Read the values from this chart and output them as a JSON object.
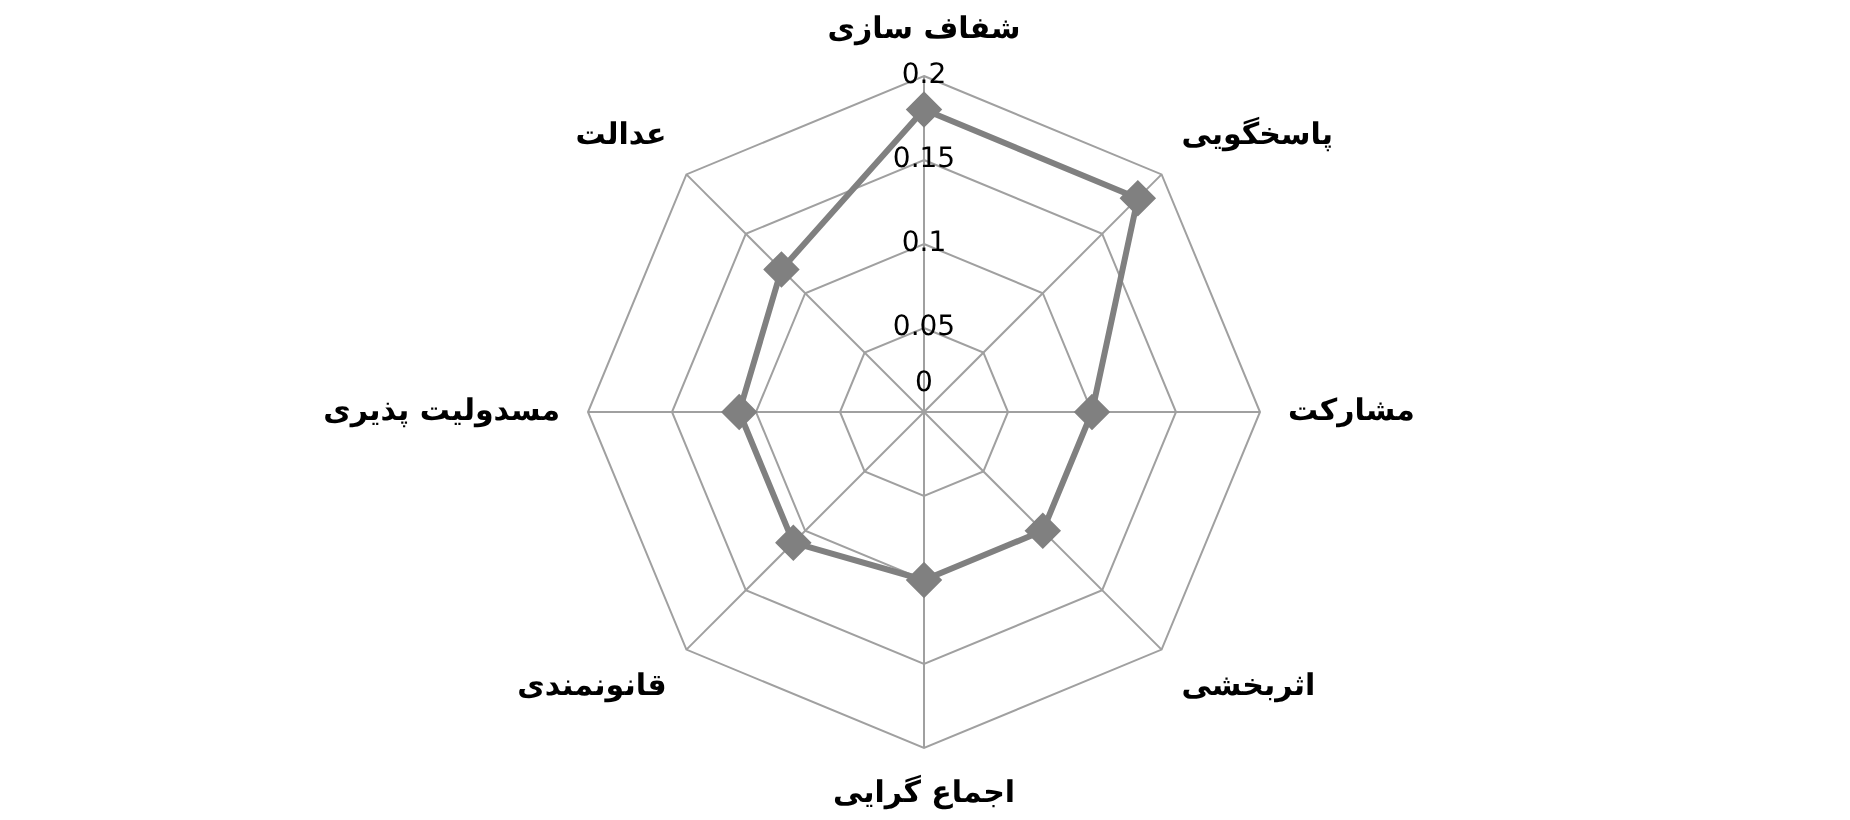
{
  "chart_data": {
    "type": "radar",
    "categories": [
      "شفاف سازی",
      "پاسخگویی",
      "مشارکت",
      "اثربخشی",
      "اجماع گرایی",
      "قانونمندی",
      "مسدولیت پذیری",
      "عدالت"
    ],
    "series": [
      {
        "color": "#808080",
        "values": [
          0.18,
          0.18,
          0.1,
          0.1,
          0.1,
          0.11,
          0.11,
          0.12
        ]
      }
    ],
    "ylim": [
      0,
      0.2
    ],
    "yticks": [
      0,
      0.05,
      0.1,
      0.15,
      0.2
    ],
    "grid": true,
    "legend": false,
    "marker": "diamond"
  }
}
